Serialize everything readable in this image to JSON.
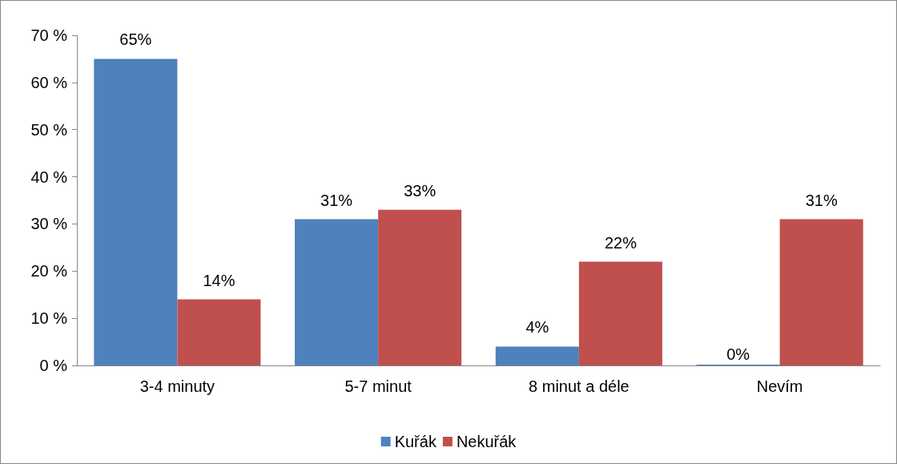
{
  "chart_data": {
    "type": "bar",
    "categories": [
      "3-4 minuty",
      "5-7 minut",
      "8 minut a déle",
      "Nevím"
    ],
    "series": [
      {
        "name": "Kuřák",
        "color": "#4f81bd",
        "values": [
          65,
          31,
          4,
          0
        ],
        "value_labels": [
          "65%",
          "31%",
          "4%",
          "0%"
        ]
      },
      {
        "name": "Nekuřák",
        "color": "#c0504d",
        "values": [
          14,
          33,
          22,
          31
        ],
        "value_labels": [
          "14%",
          "33%",
          "22%",
          "31%"
        ]
      }
    ],
    "ylim": [
      0,
      70
    ],
    "yticks": [
      {
        "value": 0,
        "label": "0 %"
      },
      {
        "value": 10,
        "label": "10 %"
      },
      {
        "value": 20,
        "label": "20 %"
      },
      {
        "value": 30,
        "label": "30 %"
      },
      {
        "value": 40,
        "label": "40 %"
      },
      {
        "value": 50,
        "label": "50 %"
      },
      {
        "value": 60,
        "label": "60 %"
      },
      {
        "value": 70,
        "label": "70 %"
      }
    ],
    "grid": false,
    "legend": "bottom"
  }
}
